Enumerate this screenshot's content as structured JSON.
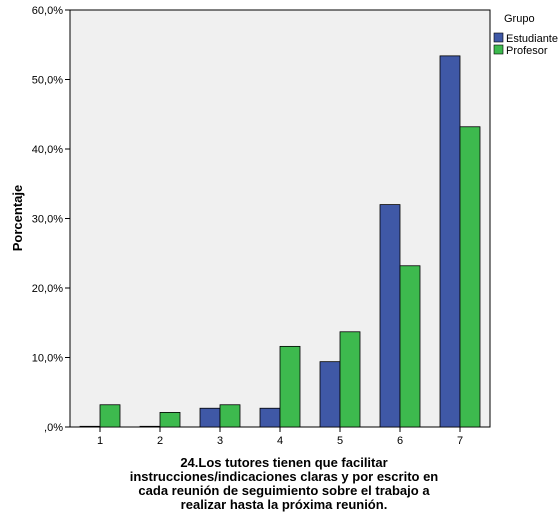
{
  "chart_data": {
    "type": "bar",
    "categories": [
      "1",
      "2",
      "3",
      "4",
      "5",
      "6",
      "7"
    ],
    "series": [
      {
        "name": "Estudiante",
        "values": [
          0.1,
          0.1,
          2.7,
          2.7,
          9.4,
          32.0,
          53.4
        ],
        "color": "#3F58A6"
      },
      {
        "name": "Profesor",
        "values": [
          3.2,
          2.1,
          3.2,
          11.6,
          13.7,
          23.2,
          43.2
        ],
        "color": "#3DBA4E"
      }
    ],
    "ylabel": "Porcentaje",
    "xlabel_lines": [
      "24.Los tutores tienen que facilitar",
      "instrucciones/indicaciones claras y por escrito en",
      "cada reunión de seguimiento sobre el trabajo a",
      "realizar hasta la próxima reunión."
    ],
    "ylim": [
      0,
      60
    ],
    "yticks": [
      0,
      10,
      20,
      30,
      40,
      50,
      60
    ],
    "ytick_labels": [
      ",0%",
      "10,0%",
      "20,0%",
      "30,0%",
      "40,0%",
      "50,0%",
      "60,0%"
    ],
    "legend_title": "Grupo",
    "legend_position": "top-right",
    "grid": false,
    "plot_background": "#F0F0F0"
  }
}
